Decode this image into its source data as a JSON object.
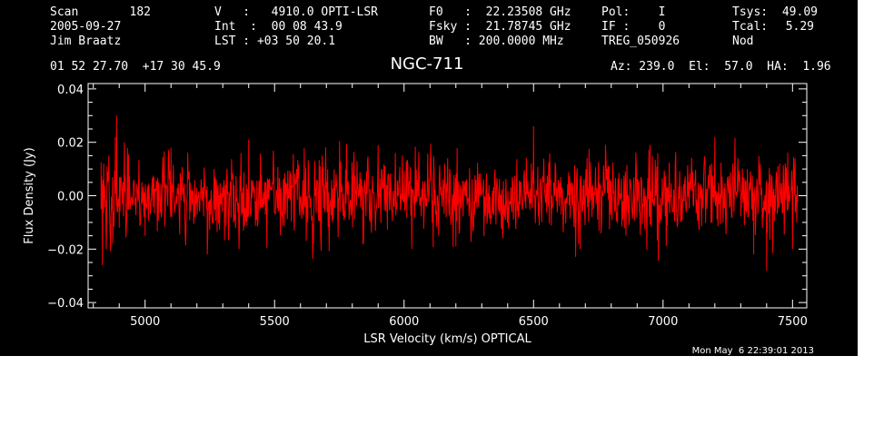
{
  "header": {
    "col1": {
      "scan_label": "Scan",
      "scan_value": "182",
      "date": "2005-09-27",
      "observer": "Jim Braatz",
      "coords": "01 52 27.70  +17 30 45.9"
    },
    "col2": {
      "line1": "V   :   4910.0 OPTI-LSR",
      "line2": "Int  :  00 08 43.9",
      "line3": "LST : +03 50 20.1"
    },
    "col3": {
      "line1": "F0   :  22.23508 GHz",
      "line2": "Fsky :  21.78745 GHz",
      "line3": "BW   : 200.0000 MHz"
    },
    "col4": {
      "line1": "Pol:    I",
      "line2": "IF :    0",
      "line3": "TREG_050926"
    },
    "col5": {
      "tsys_label": "Tsys:",
      "tsys_value": "49.09",
      "tcal_label": "Tcal:",
      "tcal_value": "5.29",
      "mode": "Nod"
    },
    "pointing": "Az: 239.0  El:  57.0  HA:  1.96",
    "timestamp": "Mon May  6 22:39:01 2013"
  },
  "colors": {
    "background": "#000000",
    "axes": "#ffffff",
    "trace": "#ff0000"
  },
  "chart_data": {
    "type": "line",
    "title": "NGC-711",
    "xlabel": "LSR Velocity (km/s) OPTICAL",
    "ylabel": "Flux Density (Jy)",
    "xlim": [
      4780,
      7555
    ],
    "ylim": [
      -0.042,
      0.042
    ],
    "xticks": [
      5000,
      5500,
      6000,
      6500,
      7000,
      7500
    ],
    "xtick_labels": [
      "5000",
      "5500",
      "6000",
      "6500",
      "7000",
      "7500"
    ],
    "yticks": [
      -0.04,
      -0.02,
      0.0,
      0.02,
      0.04
    ],
    "ytick_labels": [
      "−0.04",
      "−0.02",
      "0.00",
      "0.02",
      "0.04"
    ],
    "series": [
      {
        "color": "#ff0000",
        "x_range": [
          4830,
          7520
        ],
        "point_count": 1400,
        "noise_rms": 0.0075,
        "points": [
          [
            4830,
            -0.005
          ],
          [
            4835,
            -0.026
          ],
          [
            4840,
            0.012
          ],
          [
            4850,
            -0.02
          ],
          [
            4860,
            0.015
          ],
          [
            4875,
            -0.018
          ],
          [
            4885,
            0.022
          ],
          [
            4890,
            0.03
          ],
          [
            4900,
            -0.012
          ],
          [
            4920,
            0.02
          ],
          [
            5000,
            -0.015
          ],
          [
            5100,
            0.018
          ],
          [
            5240,
            -0.022
          ],
          [
            5400,
            0.021
          ],
          [
            5650,
            -0.018
          ],
          [
            5900,
            0.019
          ],
          [
            6200,
            -0.019
          ],
          [
            6500,
            0.026
          ],
          [
            6680,
            -0.02
          ],
          [
            6950,
            0.019
          ],
          [
            7200,
            0.022
          ],
          [
            7350,
            -0.022
          ],
          [
            7400,
            -0.028
          ],
          [
            7450,
            0.012
          ],
          [
            7500,
            -0.02
          ],
          [
            7510,
            0.014
          ]
        ]
      }
    ]
  }
}
